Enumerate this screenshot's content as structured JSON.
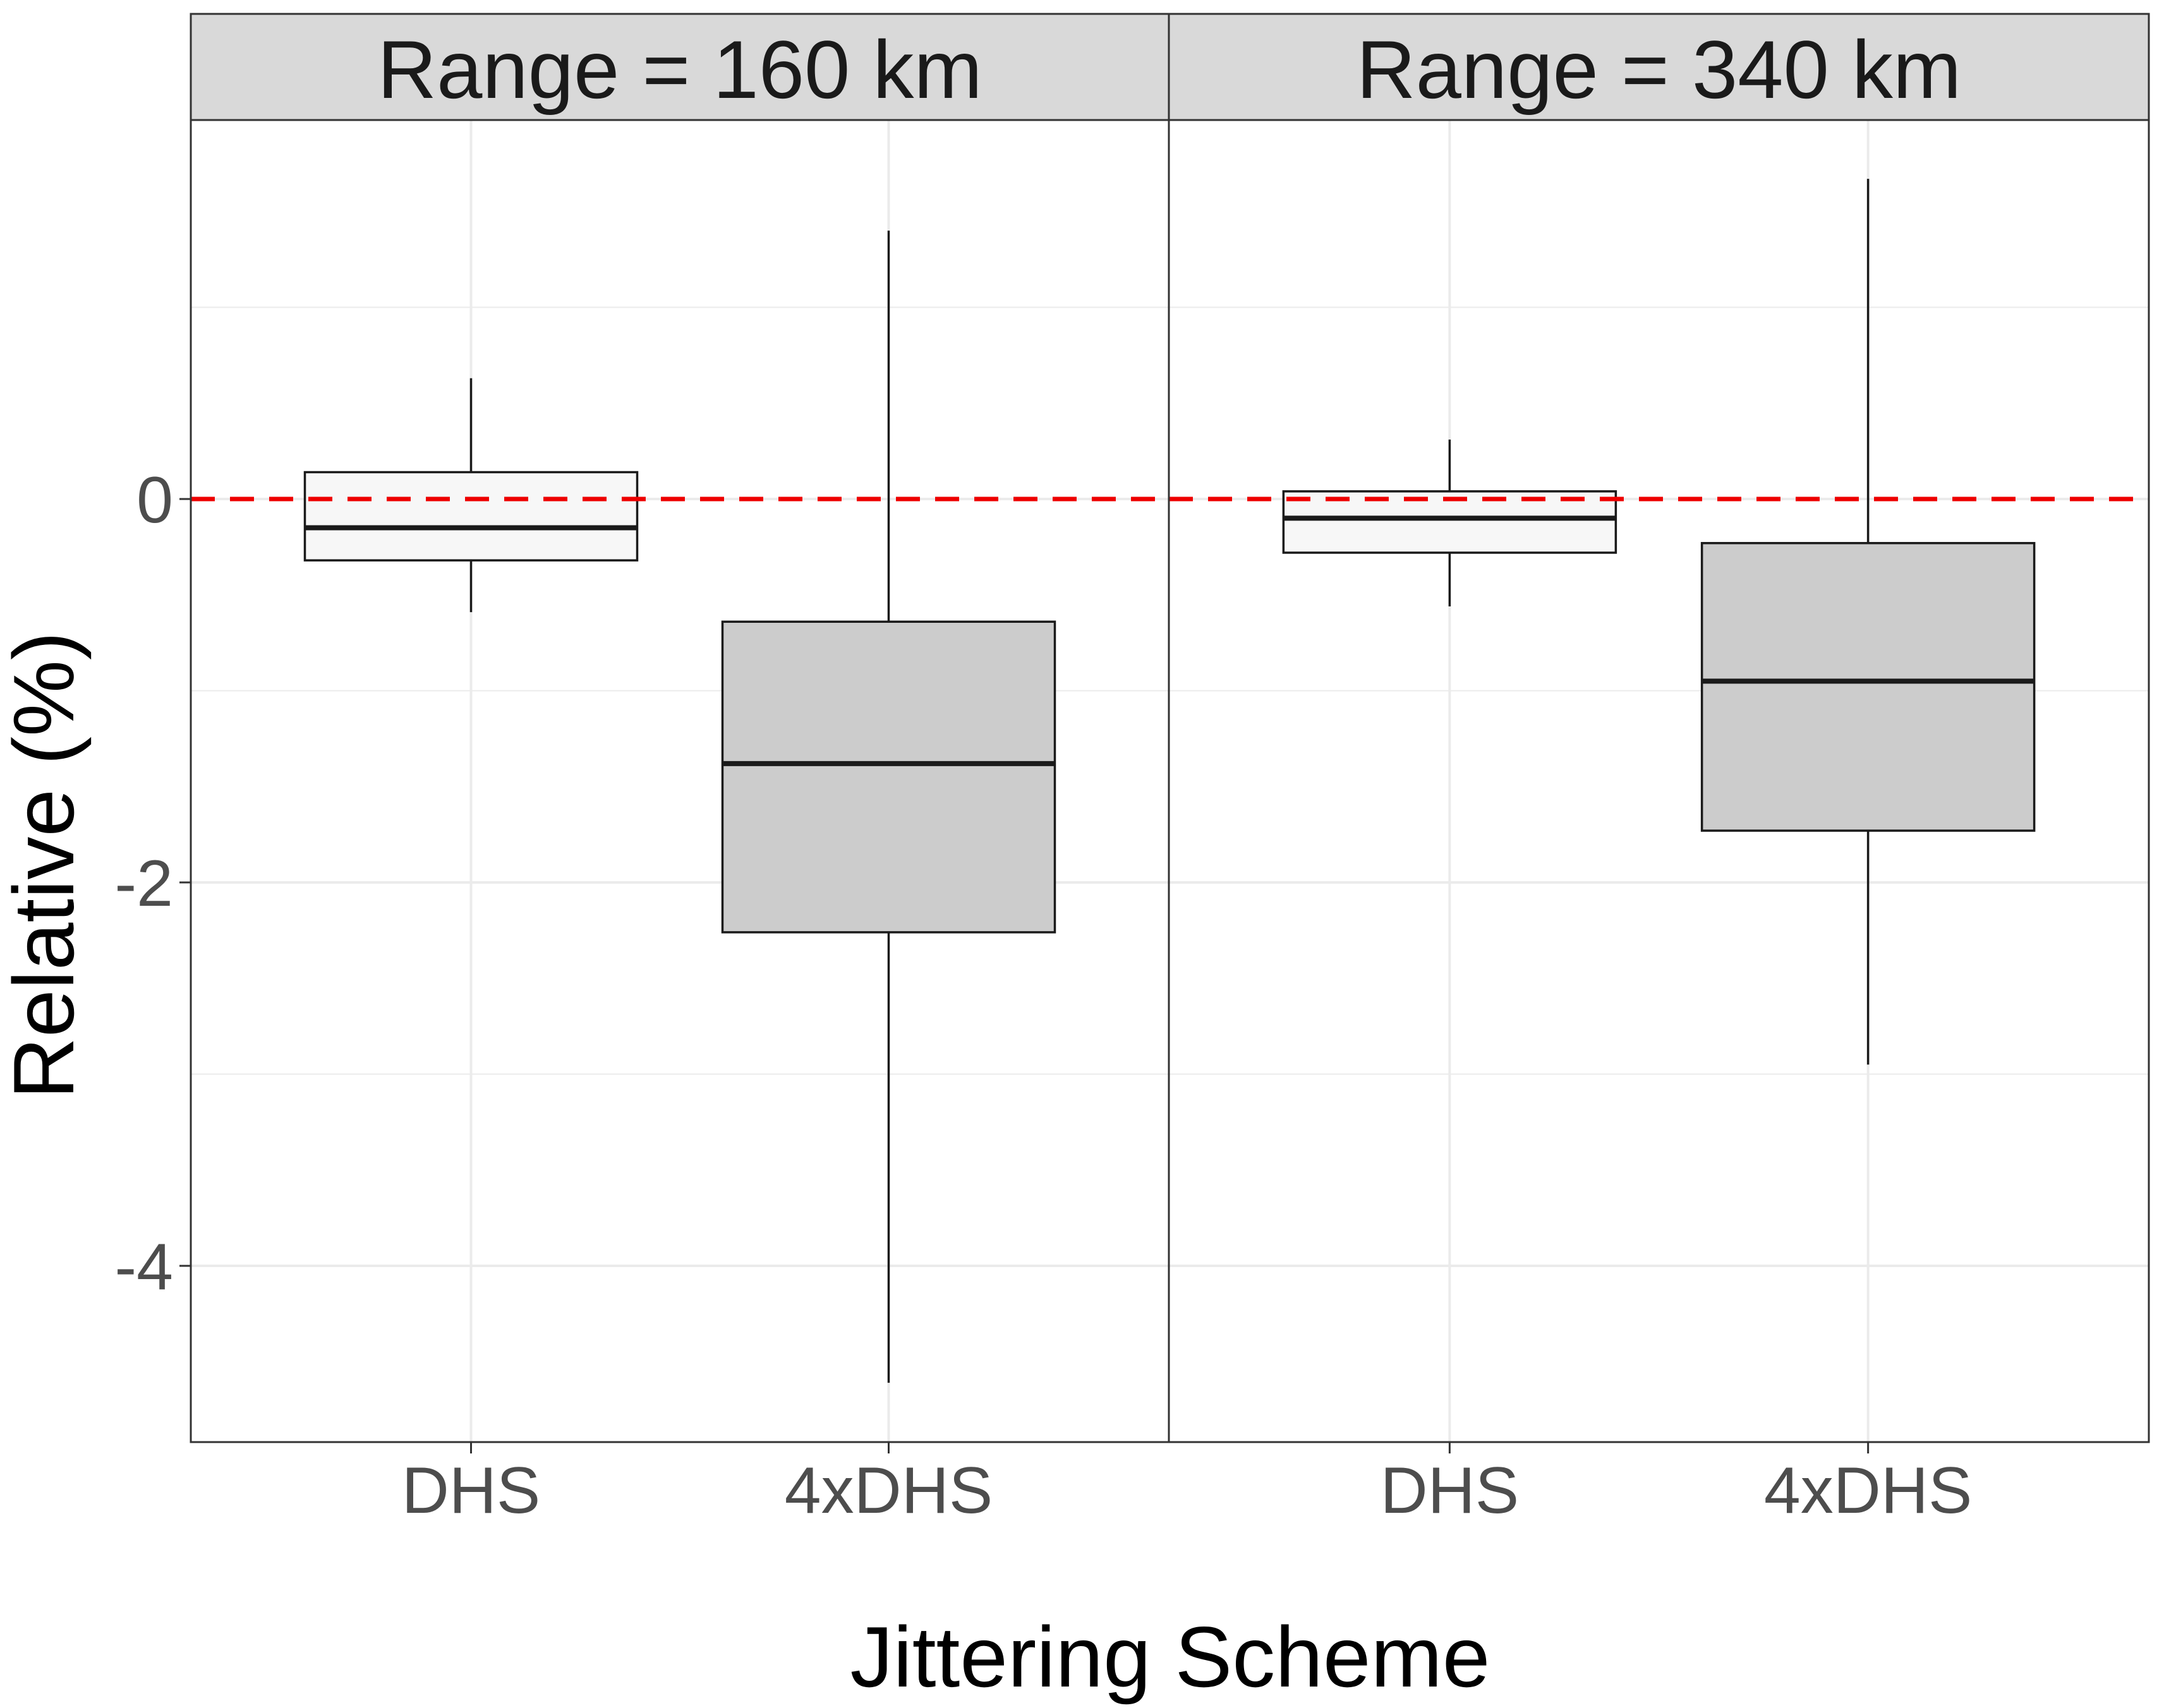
{
  "chart_data": {
    "type": "boxplot",
    "xlabel": "Jittering Scheme",
    "ylabel": "Relative (%)",
    "ylim": [
      -4.9,
      2.0
    ],
    "y_ticks": [
      0,
      -2,
      -4
    ],
    "y_tick_labels": [
      "0",
      "-2",
      "-4"
    ],
    "y_minor_gridlines": [
      1,
      -1,
      -3
    ],
    "grid": true,
    "reference_line": {
      "y": 0,
      "style": "dashed",
      "color": "#ee0000"
    },
    "categories": [
      "DHS",
      "4xDHS"
    ],
    "category_fills": {
      "DHS": "#f7f7f7",
      "4xDHS": "#cccccc"
    },
    "panels": [
      {
        "strip_label": "Range = 160 km",
        "boxes": [
          {
            "category": "DHS",
            "whisker_low": -0.59,
            "q1": -0.32,
            "median": -0.15,
            "q3": 0.14,
            "whisker_high": 0.63
          },
          {
            "category": "4xDHS",
            "whisker_low": -4.61,
            "q1": -2.26,
            "median": -1.38,
            "q3": -0.64,
            "whisker_high": 1.4
          }
        ]
      },
      {
        "strip_label": "Range = 340 km",
        "boxes": [
          {
            "category": "DHS",
            "whisker_low": -0.56,
            "q1": -0.28,
            "median": -0.1,
            "q3": 0.04,
            "whisker_high": 0.31
          },
          {
            "category": "4xDHS",
            "whisker_low": -2.95,
            "q1": -1.73,
            "median": -0.95,
            "q3": -0.23,
            "whisker_high": 1.67
          }
        ]
      }
    ]
  },
  "colors": {
    "strip_fill": "#d9d9d9",
    "panel_border": "#333333",
    "gridline": "#ebebeb",
    "box_outline": "#1a1a1a"
  }
}
